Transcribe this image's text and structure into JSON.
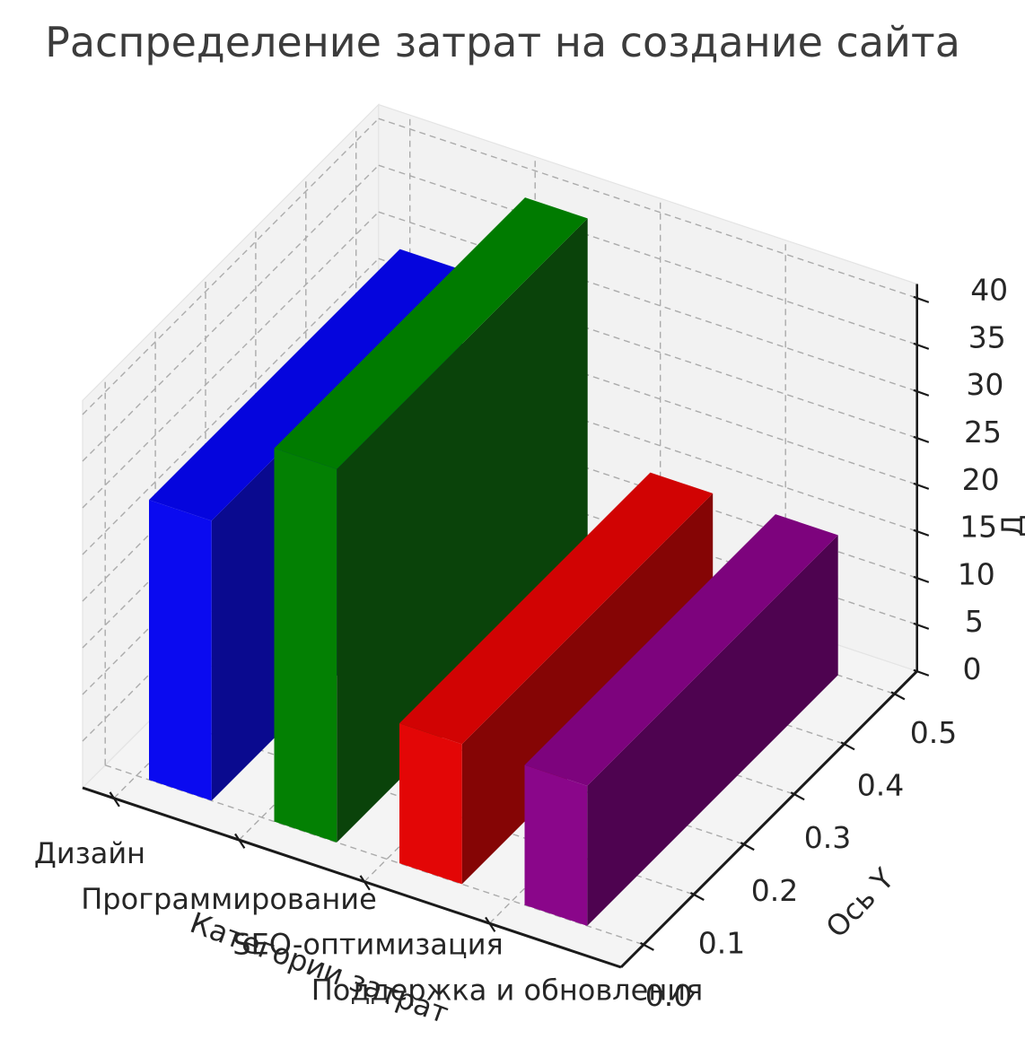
{
  "figure": {
    "title": "Распределение затрат на создание сайта",
    "background": "#ffffff"
  },
  "chart_data": {
    "type": "bar",
    "projection": "3d",
    "title": "Распределение затрат на создание сайта",
    "categories": [
      "Дизайн",
      "Программирование",
      "SEO-оптимизация",
      "Поддержка и обновления"
    ],
    "values": [
      30,
      40,
      15,
      15
    ],
    "xlabel": "Категории затрат",
    "ylabel": "Ось Y",
    "zlabel_fragment": "Д",
    "y_ticks": [
      0.0,
      0.1,
      0.2,
      0.3,
      0.4,
      0.5
    ],
    "z_ticks": [
      0,
      5,
      10,
      15,
      20,
      25,
      30,
      35,
      40
    ],
    "ylim": [
      0,
      0.5
    ],
    "zlim": [
      0,
      40
    ],
    "grid": true,
    "legend": false,
    "bar_colors": [
      {
        "name": "blue",
        "front": "#0a0af0",
        "top": "#0505dd",
        "side": "#0a0a8f"
      },
      {
        "name": "green",
        "front": "#038003",
        "top": "#007b00",
        "side": "#0a430a"
      },
      {
        "name": "red",
        "front": "#e30606",
        "top": "#d10303",
        "side": "#850505"
      },
      {
        "name": "purple",
        "front": "#8a068a",
        "top": "#7d037d",
        "side": "#4e0350"
      }
    ],
    "style": {
      "grid_color": "#ababab",
      "axis_color": "#1a1a1a",
      "tick_label_color": "#262626",
      "title_color": "#3c3c3c",
      "wall_color": "#f2f2f2",
      "floor_color": "#f4f4f4",
      "pane_edge_color": "#e4e4e4"
    }
  }
}
